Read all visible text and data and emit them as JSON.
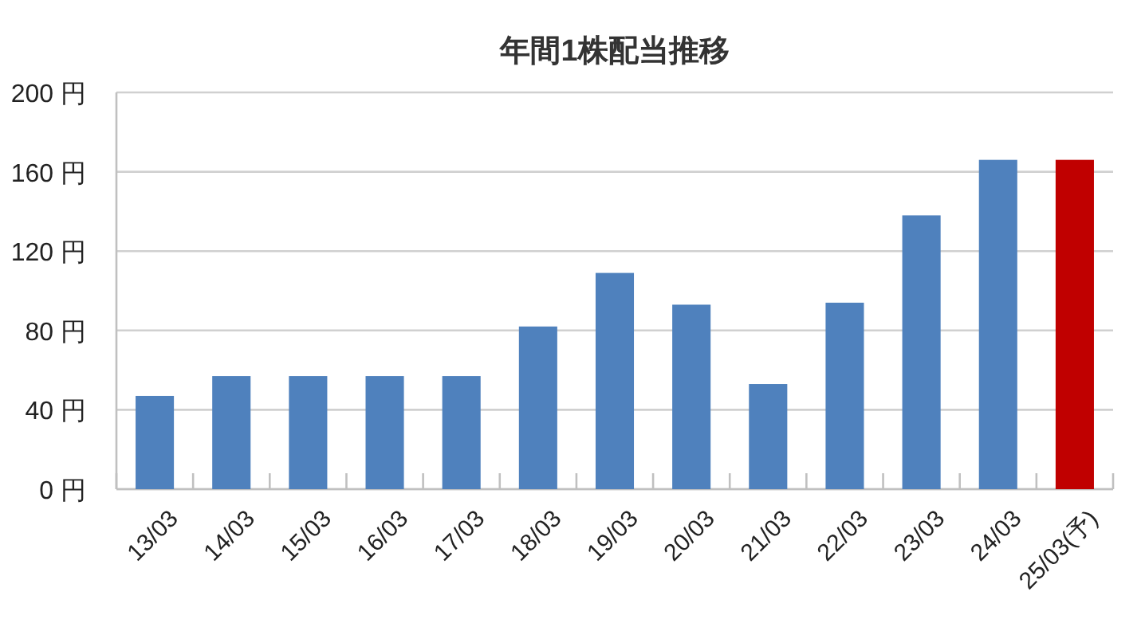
{
  "chart_data": {
    "type": "bar",
    "title": "年間1株配当推移",
    "categories": [
      "13/03",
      "14/03",
      "15/03",
      "16/03",
      "17/03",
      "18/03",
      "19/03",
      "20/03",
      "21/03",
      "22/03",
      "23/03",
      "24/03",
      "25/03(予)"
    ],
    "values": [
      47,
      57,
      57,
      57,
      57,
      82,
      109,
      93,
      53,
      94,
      138,
      166,
      166
    ],
    "colors": [
      "#4f81bd",
      "#4f81bd",
      "#4f81bd",
      "#4f81bd",
      "#4f81bd",
      "#4f81bd",
      "#4f81bd",
      "#4f81bd",
      "#4f81bd",
      "#4f81bd",
      "#4f81bd",
      "#4f81bd",
      "#c00000"
    ],
    "ylim": [
      0,
      200
    ],
    "yticks": [
      {
        "value": 0,
        "label": "0 円"
      },
      {
        "value": 40,
        "label": "40 円"
      },
      {
        "value": 80,
        "label": "80 円"
      },
      {
        "value": 120,
        "label": "120 円"
      },
      {
        "value": 160,
        "label": "160 円"
      },
      {
        "value": 200,
        "label": "200 円"
      }
    ],
    "grid": "y"
  }
}
